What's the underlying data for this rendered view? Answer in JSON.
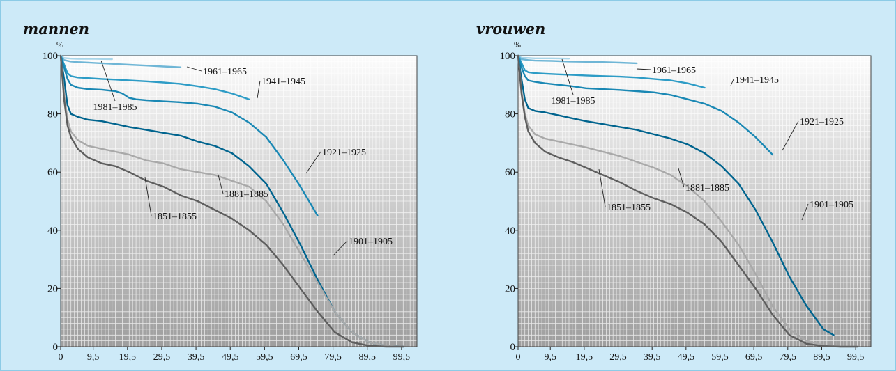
{
  "colors": {
    "background": "#cdeaf8",
    "1851-1855": "#5e5e5e",
    "1881-1885": "#a9a9a9",
    "1901-1905": "#00648e",
    "1921-1925": "#1a88b4",
    "1941-1945": "#2d9cc6",
    "1961-1965": "#6fb6d6",
    "1981-1985": "#a9d6ea"
  },
  "chart_data": [
    {
      "type": "line",
      "title": "mannen",
      "ylabel": "%",
      "xlabel": "",
      "xlim": [
        0,
        104
      ],
      "ylim": [
        0,
        100
      ],
      "xticks": [
        "0",
        "9,5",
        "19,5",
        "29,5",
        "39,5",
        "49,5",
        "59,5",
        "69,5",
        "79,5",
        "89,5",
        "99,5"
      ],
      "yticks": [
        "0",
        "20",
        "40",
        "60",
        "80",
        "100"
      ],
      "series": [
        {
          "name": "1851–1855",
          "color_key": "1851-1855",
          "x": [
            0,
            1,
            2,
            3,
            5,
            8,
            12,
            16,
            20,
            25,
            30,
            35,
            40,
            45,
            50,
            55,
            60,
            65,
            70,
            75,
            80,
            85,
            90,
            95,
            100
          ],
          "y": [
            100,
            85,
            76,
            72,
            68,
            65,
            63,
            62,
            60,
            57,
            55,
            52,
            50,
            47,
            44,
            40,
            35,
            28,
            20,
            12,
            5,
            1.5,
            0.3,
            0,
            0
          ]
        },
        {
          "name": "1881–1885",
          "color_key": "1881-1885",
          "x": [
            0,
            1,
            2,
            3,
            5,
            8,
            12,
            16,
            20,
            25,
            30,
            35,
            40,
            45,
            50,
            55,
            60,
            65,
            70,
            75,
            80,
            85,
            90,
            95,
            100
          ],
          "y": [
            100,
            87,
            78,
            74,
            71,
            69,
            68,
            67,
            66,
            64,
            63,
            61,
            60,
            59,
            57,
            55,
            50,
            42,
            32,
            22,
            12,
            5,
            1.5,
            0.3,
            0
          ]
        },
        {
          "name": "1901–1905",
          "color_key": "1901-1905",
          "x": [
            0,
            1,
            2,
            3,
            5,
            8,
            12,
            16,
            20,
            25,
            30,
            35,
            40,
            45,
            50,
            55,
            60,
            65,
            70,
            75,
            80,
            85,
            90,
            95,
            100
          ],
          "y": [
            100,
            92,
            83,
            80,
            79,
            78,
            77.5,
            76.5,
            75.5,
            74.5,
            73.5,
            72.5,
            70.5,
            69,
            66.5,
            62,
            56,
            46,
            35,
            23,
            12,
            5,
            1.5,
            0.3,
            0
          ]
        },
        {
          "name": "1921–1925",
          "color_key": "1921-1925",
          "x": [
            0,
            1,
            2,
            3,
            5,
            8,
            12,
            16,
            18,
            20,
            22,
            25,
            30,
            35,
            40,
            45,
            50,
            55,
            60,
            65,
            70,
            75
          ],
          "y": [
            100,
            96,
            92,
            90,
            89,
            88.5,
            88.3,
            87.8,
            87,
            85.5,
            85,
            84.7,
            84.3,
            84,
            83.5,
            82.5,
            80.5,
            77,
            72,
            64,
            55,
            45
          ]
        },
        {
          "name": "1941–1945",
          "color_key": "1941-1945",
          "x": [
            0,
            1,
            2,
            3,
            5,
            8,
            12,
            16,
            20,
            25,
            30,
            35,
            40,
            45,
            50,
            55
          ],
          "y": [
            100,
            97,
            94,
            93,
            92.5,
            92.3,
            92,
            91.8,
            91.5,
            91.2,
            90.8,
            90.3,
            89.5,
            88.5,
            87,
            85
          ]
        },
        {
          "name": "1961–1965",
          "color_key": "1961-1965",
          "x": [
            0,
            1,
            3,
            5,
            10,
            15,
            20,
            25,
            30,
            35
          ],
          "y": [
            100,
            98.5,
            98,
            97.8,
            97.5,
            97.2,
            96.9,
            96.6,
            96.3,
            96
          ]
        },
        {
          "name": "1981–1985",
          "color_key": "1981-1985",
          "x": [
            0,
            1,
            3,
            5,
            10,
            15
          ],
          "y": [
            100,
            99.2,
            99,
            98.9,
            98.9,
            98.8
          ]
        }
      ],
      "annotations": [
        {
          "label": "1961–1965",
          "series": "1961–1965"
        },
        {
          "label": "1941–1945",
          "series": "1941–1945"
        },
        {
          "label": "1981–1985",
          "series": "1981–1985"
        },
        {
          "label": "1921–1925",
          "series": "1921–1925"
        },
        {
          "label": "1881–1885",
          "series": "1881–1885"
        },
        {
          "label": "1851–1855",
          "series": "1851–1855"
        },
        {
          "label": "1901–1905",
          "series": "1901–1905"
        }
      ],
      "grid": true
    },
    {
      "type": "line",
      "title": "vrouwen",
      "ylabel": "%",
      "xlabel": "",
      "xlim": [
        0,
        104
      ],
      "ylim": [
        0,
        100
      ],
      "xticks": [
        "0",
        "9,5",
        "19,5",
        "29,5",
        "39,5",
        "49,5",
        "59,5",
        "69,5",
        "79,5",
        "89,5",
        "99,5"
      ],
      "yticks": [
        "0",
        "20",
        "40",
        "60",
        "80",
        "100"
      ],
      "series": [
        {
          "name": "1851–1855",
          "color_key": "1851-1855",
          "x": [
            0,
            1,
            2,
            3,
            5,
            8,
            12,
            16,
            20,
            25,
            30,
            35,
            40,
            45,
            50,
            55,
            60,
            65,
            70,
            75,
            80,
            85,
            90,
            95,
            100
          ],
          "y": [
            100,
            87,
            79,
            74,
            70,
            67,
            65,
            63.5,
            61.5,
            59,
            56.5,
            53.5,
            51,
            49,
            46,
            42,
            36,
            28,
            20,
            11,
            4,
            1,
            0.2,
            0,
            0
          ]
        },
        {
          "name": "1881–1885",
          "color_key": "1881-1885",
          "x": [
            0,
            1,
            2,
            3,
            5,
            8,
            12,
            16,
            20,
            25,
            30,
            35,
            40,
            45,
            50,
            55,
            60,
            65,
            70,
            75,
            80,
            85,
            90,
            95,
            100
          ],
          "y": [
            100,
            88,
            80,
            76,
            73,
            71.5,
            70.5,
            69.5,
            68.5,
            67,
            65.5,
            63.5,
            61.5,
            59,
            55,
            50,
            43,
            35,
            25,
            14,
            6,
            2,
            0.5,
            0,
            0
          ]
        },
        {
          "name": "1901–1905",
          "color_key": "1901-1905",
          "x": [
            0,
            1,
            2,
            3,
            5,
            8,
            12,
            16,
            20,
            25,
            30,
            35,
            40,
            45,
            50,
            55,
            60,
            65,
            70,
            75,
            80,
            85,
            90,
            93
          ],
          "y": [
            100,
            92,
            85,
            82,
            81,
            80.5,
            79.5,
            78.5,
            77.5,
            76.5,
            75.5,
            74.5,
            73,
            71.5,
            69.5,
            66.5,
            62,
            56,
            47,
            36,
            24,
            14,
            6,
            4
          ]
        },
        {
          "name": "1921–1925",
          "color_key": "1921-1925",
          "x": [
            0,
            1,
            2,
            3,
            5,
            8,
            12,
            16,
            20,
            25,
            30,
            35,
            40,
            45,
            50,
            55,
            60,
            65,
            70,
            75
          ],
          "y": [
            100,
            96,
            93,
            91.5,
            91,
            90.5,
            90,
            89.5,
            88.8,
            88.5,
            88.2,
            87.8,
            87.4,
            86.5,
            85,
            83.5,
            81,
            77,
            72,
            66
          ]
        },
        {
          "name": "1941–1945",
          "color_key": "1941-1945",
          "x": [
            0,
            1,
            2,
            3,
            5,
            8,
            12,
            16,
            20,
            25,
            30,
            35,
            40,
            45,
            50,
            55
          ],
          "y": [
            100,
            97.5,
            95,
            94.3,
            94,
            93.8,
            93.6,
            93.4,
            93.2,
            93,
            92.8,
            92.5,
            92,
            91.5,
            90.5,
            89
          ]
        },
        {
          "name": "1961–1965",
          "color_key": "1961-1965",
          "x": [
            0,
            1,
            3,
            5,
            10,
            15,
            20,
            25,
            30,
            35
          ],
          "y": [
            100,
            98.8,
            98.5,
            98.3,
            98.2,
            98,
            97.9,
            97.8,
            97.6,
            97.4
          ]
        },
        {
          "name": "1981–1985",
          "color_key": "1981-1985",
          "x": [
            0,
            1,
            3,
            5,
            10,
            15
          ],
          "y": [
            100,
            99.3,
            99.2,
            99.1,
            99.1,
            99
          ]
        }
      ],
      "annotations": [
        {
          "label": "1961–1965",
          "series": "1961–1965"
        },
        {
          "label": "1941–1945",
          "series": "1941–1945"
        },
        {
          "label": "1981–1985",
          "series": "1981–1985"
        },
        {
          "label": "1921–1925",
          "series": "1921–1925"
        },
        {
          "label": "1881–1885",
          "series": "1881–1885"
        },
        {
          "label": "1851–1855",
          "series": "1851–1855"
        },
        {
          "label": "1901–1905",
          "series": "1901–1905"
        }
      ],
      "grid": true
    }
  ]
}
